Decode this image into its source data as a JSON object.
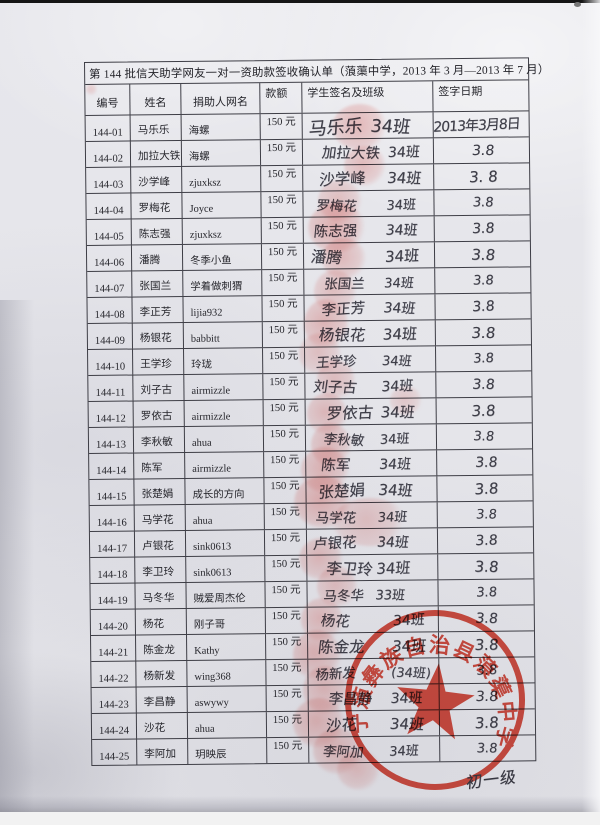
{
  "document": {
    "title": "第 144 批信天助学网友一对一资助款签收确认单（蒗蕖中学，2013 年 3 月—2013 年 7 月）",
    "columns": [
      "编号",
      "姓名",
      "捐助人网名",
      "款额",
      "学生签名及班级",
      "签字日期"
    ],
    "rows": [
      {
        "id": "144-01",
        "name": "马乐乐",
        "donor": "海螺",
        "amount": "150 元",
        "sig": "马乐乐",
        "class": "34班",
        "date": "2013年3月8日"
      },
      {
        "id": "144-02",
        "name": "加拉大铁",
        "donor": "海螺",
        "amount": "150 元",
        "sig": "加拉大铁",
        "class": "34班",
        "date": "3.8"
      },
      {
        "id": "144-03",
        "name": "沙学峰",
        "donor": "zjuxksz",
        "amount": "150 元",
        "sig": "沙学峰",
        "class": "34班",
        "date": "3. 8"
      },
      {
        "id": "144-04",
        "name": "罗梅花",
        "donor": "Joyce",
        "amount": "150 元",
        "sig": "罗梅花",
        "class": "34班",
        "date": "3.8"
      },
      {
        "id": "144-05",
        "name": "陈志强",
        "donor": "zjuxksz",
        "amount": "150 元",
        "sig": "陈志强",
        "class": "34班",
        "date": "3.8"
      },
      {
        "id": "144-06",
        "name": "潘腾",
        "donor": "冬季小鱼",
        "amount": "150 元",
        "sig": "潘腾",
        "class": "34班",
        "date": "3.8"
      },
      {
        "id": "144-07",
        "name": "张国兰",
        "donor": "学着做刺猬",
        "amount": "150 元",
        "sig": "张国兰",
        "class": "34班",
        "date": "3.8"
      },
      {
        "id": "144-08",
        "name": "李正芳",
        "donor": "lijia932",
        "amount": "150 元",
        "sig": "李正芳",
        "class": "34班",
        "date": "3.8"
      },
      {
        "id": "144-09",
        "name": "杨银花",
        "donor": "babbitt",
        "amount": "150 元",
        "sig": "杨银花",
        "class": "34班",
        "date": "3.8"
      },
      {
        "id": "144-10",
        "name": "王学珍",
        "donor": "玲珑",
        "amount": "150 元",
        "sig": "王学珍",
        "class": "34班",
        "date": "3.8"
      },
      {
        "id": "144-11",
        "name": "刘子古",
        "donor": "airmizzle",
        "amount": "150 元",
        "sig": "刘子古",
        "class": "34班",
        "date": "3.8"
      },
      {
        "id": "144-12",
        "name": "罗依古",
        "donor": "airmizzle",
        "amount": "150 元",
        "sig": "罗依古",
        "class": "34班",
        "date": "3.8"
      },
      {
        "id": "144-13",
        "name": "李秋敏",
        "donor": "ahua",
        "amount": "150 元",
        "sig": "李秋敏",
        "class": "34班",
        "date": "3.8"
      },
      {
        "id": "144-14",
        "name": "陈军",
        "donor": "airmizzle",
        "amount": "150 元",
        "sig": "陈军",
        "class": "34班",
        "date": "3.8"
      },
      {
        "id": "144-15",
        "name": "张楚娟",
        "donor": "成长的方向",
        "amount": "150 元",
        "sig": "张楚娟",
        "class": "34班",
        "date": "3.8"
      },
      {
        "id": "144-16",
        "name": "马学花",
        "donor": "ahua",
        "amount": "150 元",
        "sig": "马学花",
        "class": "34班",
        "date": "3.8"
      },
      {
        "id": "144-17",
        "name": "卢银花",
        "donor": "sink0613",
        "amount": "150 元",
        "sig": "卢银花",
        "class": "34班",
        "date": "3.8"
      },
      {
        "id": "144-18",
        "name": "李卫玲",
        "donor": "sink0613",
        "amount": "150 元",
        "sig": "李卫玲",
        "class": "34班",
        "date": "3.8"
      },
      {
        "id": "144-19",
        "name": "马冬华",
        "donor": "贼爱周杰伦",
        "amount": "150 元",
        "sig": "马冬华",
        "class": "33班",
        "date": "3.8"
      },
      {
        "id": "144-20",
        "name": "杨花",
        "donor": "刚子哥",
        "amount": "150 元",
        "sig": "杨花",
        "class": "34班",
        "date": "3.8"
      },
      {
        "id": "144-21",
        "name": "陈金龙",
        "donor": "Kathy",
        "amount": "150 元",
        "sig": "陈金龙",
        "class": "34班",
        "date": "3.8"
      },
      {
        "id": "144-22",
        "name": "杨新发",
        "donor": "wing368",
        "amount": "150 元",
        "sig": "杨新发",
        "class": "(34班)",
        "date": "3.8"
      },
      {
        "id": "144-23",
        "name": "李昌静",
        "donor": "aswywy",
        "amount": "150 元",
        "sig": "李昌静",
        "class": "34班",
        "date": "3.8"
      },
      {
        "id": "144-24",
        "name": "沙花",
        "donor": "ahua",
        "amount": "150 元",
        "sig": "沙花",
        "class": "34班",
        "date": "3.8"
      },
      {
        "id": "144-25",
        "name": "李阿加",
        "donor": "玥映辰",
        "amount": "150 元",
        "sig": "李阿加",
        "class": "34班",
        "date": "3.8"
      }
    ],
    "stamp": {
      "text": "宁蒗彝族自治县蒗蕖中学",
      "color": "#d93a2b"
    },
    "footnote": "初一级",
    "ink_color": "#3d3d47"
  }
}
